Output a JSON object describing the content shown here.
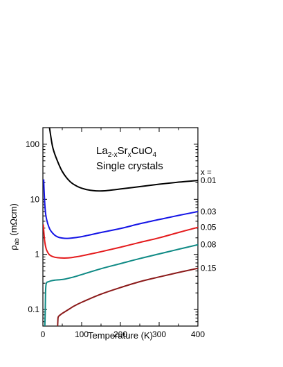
{
  "chart_data": {
    "type": "line",
    "x_scale": "linear",
    "y_scale": "log",
    "xlim": [
      0,
      400
    ],
    "ylim": [
      0.05,
      200
    ],
    "xlabel": "Temperature (K)",
    "ylabel": {
      "main": "ρ",
      "sub": "ab",
      "unit": " (mΩcm)"
    },
    "x_ticks": [
      0,
      100,
      200,
      300,
      400
    ],
    "x_tick_labels": [
      "0",
      "100",
      "200",
      "300",
      "400"
    ],
    "y_ticks": [
      0.1,
      1,
      10,
      100
    ],
    "y_tick_labels": [
      "0.1",
      "1",
      "10",
      "100"
    ],
    "annotation": {
      "formula": [
        {
          "text": "La",
          "sub": false
        },
        {
          "text": "2-x",
          "sub": true
        },
        {
          "text": "Sr",
          "sub": false
        },
        {
          "text": "x",
          "sub": true
        },
        {
          "text": "CuO",
          "sub": false
        },
        {
          "text": "4",
          "sub": true
        }
      ],
      "line2": "Single crystals"
    },
    "legend_header": "x =",
    "grid": false,
    "series": [
      {
        "name": "0.01",
        "color": "#000000",
        "x": [
          17,
          25,
          35,
          50,
          70,
          90,
          110,
          130,
          145,
          160,
          180,
          200,
          250,
          300,
          350,
          400
        ],
        "y": [
          200,
          90,
          55,
          32,
          21,
          17,
          15.2,
          14.4,
          14.2,
          14.3,
          14.8,
          15.4,
          17,
          18.8,
          20.5,
          22
        ]
      },
      {
        "name": "0.03",
        "color": "#1414e6",
        "x": [
          2,
          3,
          5,
          7,
          10,
          15,
          20,
          30,
          40,
          50,
          60,
          70,
          80,
          100,
          120,
          150,
          200,
          250,
          300,
          350,
          400
        ],
        "y": [
          23,
          15,
          8,
          5.5,
          4.2,
          3.2,
          2.7,
          2.25,
          2.05,
          1.98,
          1.95,
          1.97,
          2.0,
          2.1,
          2.25,
          2.5,
          2.95,
          3.6,
          4.3,
          5.1,
          6.0
        ]
      },
      {
        "name": "0.05",
        "color": "#e41a1c",
        "x": [
          1,
          2,
          4,
          6,
          8,
          10,
          15,
          20,
          30,
          40,
          50,
          60,
          70,
          80,
          100,
          150,
          200,
          250,
          300,
          350,
          400
        ],
        "y": [
          3.5,
          2.8,
          1.9,
          1.5,
          1.3,
          1.18,
          1.02,
          0.95,
          0.89,
          0.87,
          0.86,
          0.86,
          0.87,
          0.89,
          0.94,
          1.12,
          1.35,
          1.65,
          2.0,
          2.5,
          3.1
        ]
      },
      {
        "name": "0.08",
        "color": "#0f8a85",
        "x": [
          5,
          6,
          6.5,
          7,
          8,
          10,
          15,
          20,
          30,
          40,
          50,
          60,
          70,
          80,
          100,
          150,
          200,
          250,
          300,
          350,
          400
        ],
        "y": [
          0.05,
          0.09,
          0.15,
          0.22,
          0.28,
          0.31,
          0.32,
          0.33,
          0.34,
          0.345,
          0.35,
          0.36,
          0.375,
          0.39,
          0.43,
          0.55,
          0.68,
          0.84,
          1.02,
          1.24,
          1.5
        ]
      },
      {
        "name": "0.15",
        "color": "#8b1a1a",
        "x": [
          38,
          38.5,
          39,
          40,
          42,
          45,
          50,
          60,
          70,
          80,
          100,
          150,
          200,
          250,
          300,
          350,
          400
        ],
        "y": [
          0.05,
          0.06,
          0.07,
          0.074,
          0.077,
          0.08,
          0.085,
          0.094,
          0.104,
          0.115,
          0.135,
          0.19,
          0.25,
          0.32,
          0.39,
          0.47,
          0.56
        ]
      }
    ]
  }
}
